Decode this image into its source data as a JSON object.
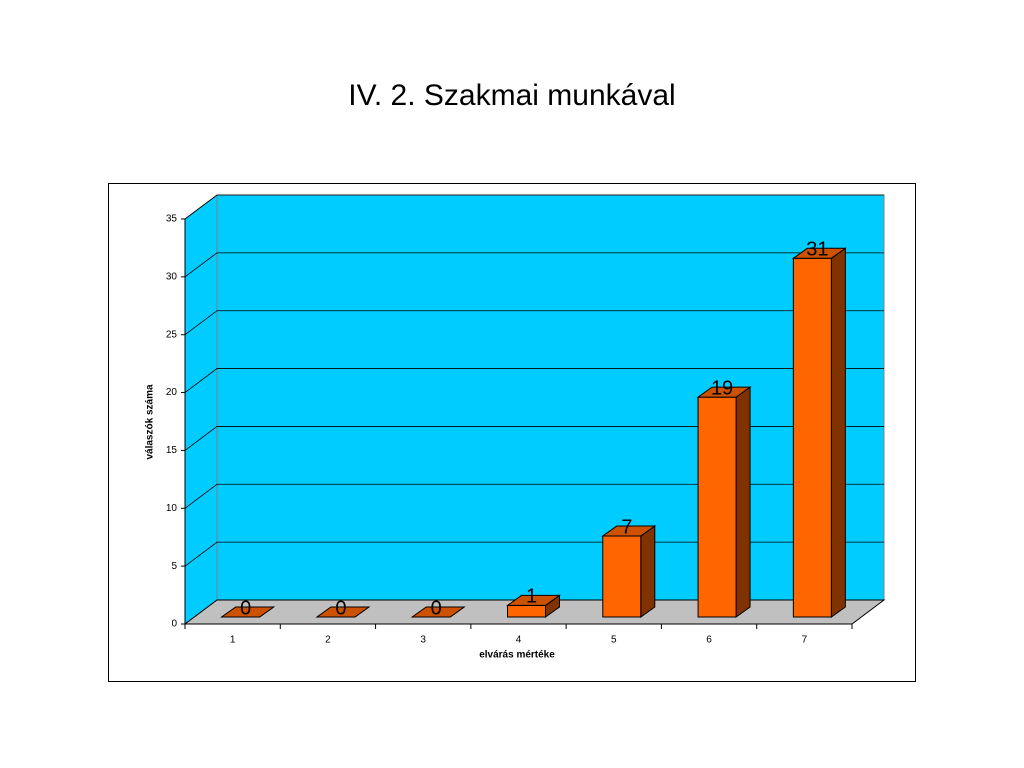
{
  "chart_data": {
    "type": "bar3d",
    "title": "IV. 2. Szakmai  munkával",
    "x_label": "elvárás mértéke",
    "y_label": "válaszók száma",
    "categories": [
      "1",
      "2",
      "3",
      "4",
      "5",
      "6",
      "7"
    ],
    "values": [
      0,
      0,
      0,
      1,
      7,
      19,
      31
    ],
    "color": "#ff6600",
    "wall_color": "#00ccff",
    "floor_color": "#c0c0c0",
    "ylim": [
      0,
      35
    ],
    "yticks": [
      0,
      5,
      10,
      15,
      20,
      25,
      30,
      35
    ],
    "grid": true
  }
}
